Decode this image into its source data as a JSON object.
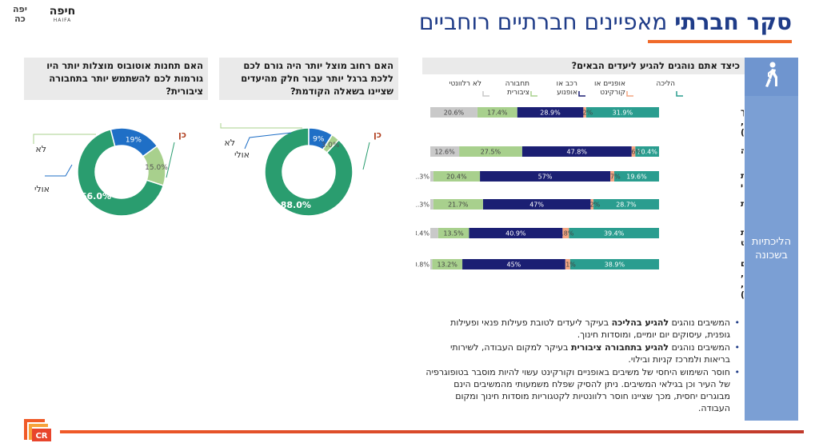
{
  "header": {
    "title_bold": "סקר חברתי",
    "title_rest": "מאפיינים חברתיים רוחביים",
    "logo_yafo": "יפה כה",
    "logo_haifa_he": "חיפה",
    "logo_haifa_en": "HAIFA"
  },
  "sidebar": {
    "label": "הליכתיות בשכונה",
    "icon": "walking-person-icon"
  },
  "footer": {
    "logo_text": "CR"
  },
  "colors": {
    "walk": "#2a9d8f",
    "bike_scooter": "#f4a582",
    "car_motorcycle": "#1b1f73",
    "public_transport": "#a8d08d",
    "not_relevant": "#c9c9c9",
    "donut_yes": "#2a9d6f",
    "donut_no": "#a8d08d",
    "donut_maybe": "#1f6fc6",
    "title": "#1f3c88",
    "accent": "#f06a2a",
    "sidebar": "#7b9fd4"
  },
  "chart_data": [
    {
      "type": "bar",
      "orientation": "horizontal-stacked-100",
      "title": "כיצד אתם נוהגים להגיע ליעדים הבאים?",
      "categories": [
        "מוסדות חינוך (גנים, בי\"ס, אקדמיה)",
        "מקום העבודה",
        "מרכז קניות ובילוי",
        "שירותי בריאות",
        "מקום לפעילות פנאי וספורט",
        "עיסוקים יום יומיים (קניות, איסוף חבילה, סידורים אחרים)"
      ],
      "series": [
        {
          "name": "הליכה",
          "color": "#2a9d8f",
          "values": [
            31.9,
            10.4,
            19.6,
            28.7,
            39.4,
            38.9
          ]
        },
        {
          "name": "אופניים או קורקינט",
          "color": "#f4a582",
          "values": [
            1.2,
            1.6,
            1.7,
            1.2,
            2.8,
            2.1
          ]
        },
        {
          "name": "רכב או אופנוע",
          "color": "#1b1f73",
          "values": [
            28.9,
            47.8,
            57,
            47,
            40.9,
            45
          ]
        },
        {
          "name": "תחבורה ציבורית",
          "color": "#a8d08d",
          "values": [
            17.4,
            27.5,
            20.4,
            21.7,
            13.5,
            13.2
          ]
        },
        {
          "name": "לא רלוונטי",
          "color": "#c9c9c9",
          "values": [
            20.6,
            12.6,
            1.3,
            1.3,
            3.4,
            0.8
          ]
        }
      ],
      "value_labels": [
        [
          "31.9%",
          "1.2%",
          "28.9%",
          "17.4%",
          "20.6%"
        ],
        [
          "10.4%",
          "1.6%",
          "47.8%",
          "27.5%",
          "12.6%"
        ],
        [
          "19.6%",
          "1.7%",
          "57%",
          "20.4%",
          "1.3%"
        ],
        [
          "28.7%",
          "1.2%",
          "47%",
          "21.7%",
          "1.3%"
        ],
        [
          "39.4%",
          "2.8%",
          "40.9%",
          "13.5%",
          "3.4%"
        ],
        [
          "38.9%",
          "2.1%",
          "45%",
          "13.2%",
          "0.8%"
        ]
      ],
      "category_lines": [
        [
          "מוסדות חינוך",
          "(גנים, בי\"ס,",
          "אקדמיה)"
        ],
        [
          "מקום העבודה"
        ],
        [
          "מרכז קניות",
          "ובילוי"
        ],
        [
          "שירותי בריאות"
        ],
        [
          "מקום לפעילות",
          "פנאי וספורט"
        ],
        [
          "עיסוקים יום",
          "יומיים (קניות,",
          "איסוף חבילה,",
          "סידורים אחרים)"
        ]
      ],
      "legend_lines": [
        [
          "הליכה"
        ],
        [
          "אופניים או",
          "קורקינט"
        ],
        [
          "רכב או",
          "אופנוע"
        ],
        [
          "תחבורה",
          "ציבורית"
        ],
        [
          "לא רלוונטי"
        ]
      ],
      "legend_position": "top",
      "xlim": [
        0,
        100
      ],
      "direction": "right-to-left"
    },
    {
      "type": "pie",
      "style": "donut",
      "title": "האם רחוב מוצל יותר היה גורם לכם ללכת ברגל יותר עבור חלק מהיעדים שציינו בשאלה הקודמת?",
      "labels": [
        "כן",
        "לא",
        "אולי"
      ],
      "values": [
        88.0,
        3.0,
        9
      ],
      "value_labels": [
        "88.0%",
        "3.0%",
        "9%"
      ],
      "colors": [
        "#2a9d6f",
        "#a8d08d",
        "#1f6fc6"
      ]
    },
    {
      "type": "pie",
      "style": "donut",
      "title": "האם תחנות אוטובוס מוצלות יותר היו גורמות לכם להשתמש יותר בתחבורה ציבורית?",
      "labels": [
        "כן",
        "לא",
        "אולי"
      ],
      "values": [
        66.0,
        15.0,
        19
      ],
      "value_labels": [
        "66.0%",
        "15.0%",
        "19%"
      ],
      "colors": [
        "#2a9d6f",
        "#a8d08d",
        "#1f6fc6"
      ]
    }
  ],
  "bullets": [
    {
      "pre": "המשיבים נוהגים ",
      "bold": "להגיע בהליכה",
      "post": " בעיקר ליעדים לטובת פעילות פנאי ופעילות גופנית, עיסוקים יום יומיים, ומוסדות חינוך."
    },
    {
      "pre": "המשיבים נוהגים ",
      "bold": "להגיע בתחבורה ציבורית",
      "post": " בעיקר למקום העבודה, לשירותי בריאות ולמרכז קניות ובילוי."
    },
    {
      "pre": "",
      "bold": "",
      "post": "חוסר השימוש היחסי של משיבים באופניים וקורקינט עשוי להיות מוסבר בטופוגרפיה של העיר וכן בגילאי המשיבים. ניתן להסיק שפלח משמעותי מהמשיבים הינם מבוגרים יחסית, מכך שציינו חוסר רלוונטיות לקטגוריות מוסדות חינוך ומקום העבודה."
    }
  ]
}
